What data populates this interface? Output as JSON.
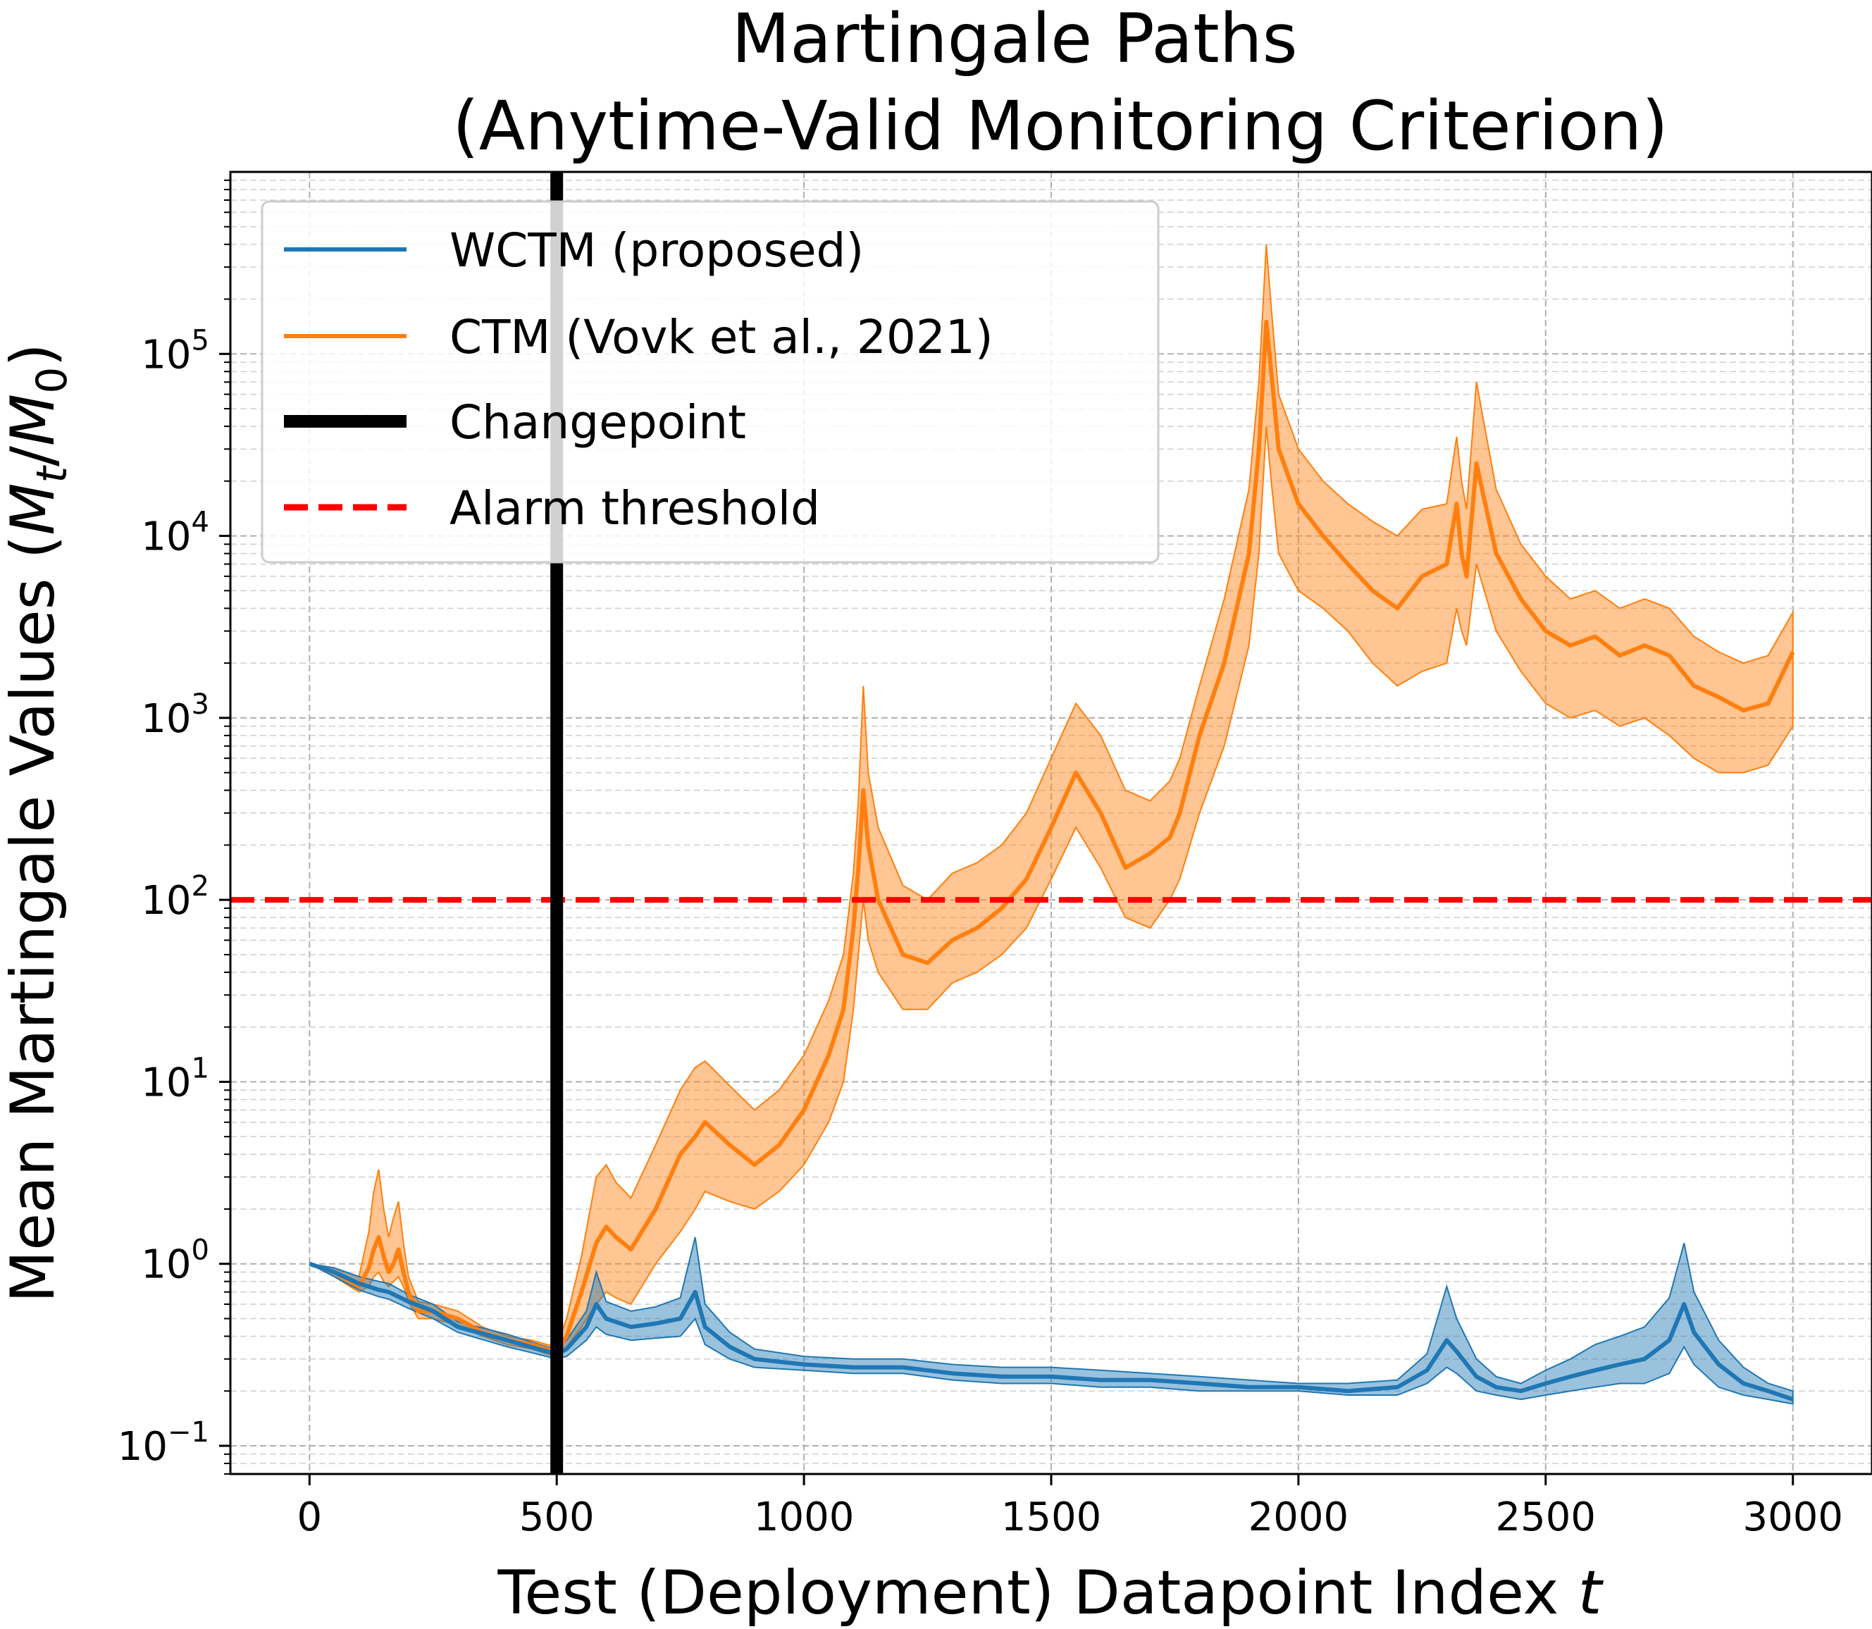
{
  "chart_data": {
    "type": "line",
    "title": "Martingale Paths",
    "subtitle": "(Anytime-Valid Monitoring Criterion)",
    "xlabel": "Test (Deployment) Datapoint Index t",
    "ylabel": "Mean Martingale Values (M_t/M_0)",
    "y_scale": "log",
    "xlim": [
      -160,
      3160
    ],
    "ylim": [
      0.07,
      1000000
    ],
    "x_ticks": [
      0,
      500,
      1000,
      1500,
      2000,
      2500,
      3000
    ],
    "x_tick_labels": [
      "0",
      "500",
      "1000",
      "1500",
      "2000",
      "2500",
      "3000"
    ],
    "y_ticks": [
      0.1,
      1,
      10,
      100,
      1000,
      10000,
      100000
    ],
    "y_tick_labels": [
      {
        "base": "10",
        "exp": "−1"
      },
      {
        "base": "10",
        "exp": "0"
      },
      {
        "base": "10",
        "exp": "1"
      },
      {
        "base": "10",
        "exp": "2"
      },
      {
        "base": "10",
        "exp": "3"
      },
      {
        "base": "10",
        "exp": "4"
      },
      {
        "base": "10",
        "exp": "5"
      }
    ],
    "grid": true,
    "legend_position": "upper-left",
    "series": [
      {
        "name": "WCTM (proposed)",
        "color": "#1f77b4",
        "x": [
          0,
          50,
          100,
          140,
          160,
          200,
          250,
          300,
          400,
          480,
          500,
          520,
          560,
          580,
          600,
          650,
          700,
          750,
          780,
          800,
          850,
          900,
          1000,
          1100,
          1200,
          1300,
          1400,
          1500,
          1600,
          1700,
          1800,
          1900,
          2000,
          2100,
          2200,
          2260,
          2300,
          2320,
          2360,
          2400,
          2450,
          2500,
          2550,
          2600,
          2650,
          2700,
          2750,
          2780,
          2800,
          2850,
          2900,
          2950,
          3000
        ],
        "values": [
          1.0,
          0.9,
          0.78,
          0.72,
          0.7,
          0.62,
          0.55,
          0.45,
          0.38,
          0.33,
          0.32,
          0.34,
          0.45,
          0.6,
          0.5,
          0.45,
          0.47,
          0.5,
          0.7,
          0.45,
          0.35,
          0.3,
          0.28,
          0.27,
          0.27,
          0.25,
          0.24,
          0.24,
          0.23,
          0.23,
          0.22,
          0.21,
          0.21,
          0.2,
          0.21,
          0.26,
          0.38,
          0.33,
          0.24,
          0.21,
          0.2,
          0.22,
          0.24,
          0.26,
          0.28,
          0.3,
          0.38,
          0.6,
          0.42,
          0.28,
          0.22,
          0.2,
          0.18
        ],
        "band_lower": [
          1.0,
          0.85,
          0.72,
          0.66,
          0.64,
          0.57,
          0.5,
          0.42,
          0.35,
          0.31,
          0.3,
          0.31,
          0.38,
          0.45,
          0.41,
          0.38,
          0.39,
          0.4,
          0.5,
          0.36,
          0.3,
          0.27,
          0.26,
          0.25,
          0.25,
          0.23,
          0.22,
          0.22,
          0.21,
          0.21,
          0.2,
          0.2,
          0.2,
          0.19,
          0.19,
          0.22,
          0.27,
          0.25,
          0.2,
          0.19,
          0.18,
          0.19,
          0.2,
          0.21,
          0.22,
          0.22,
          0.25,
          0.35,
          0.28,
          0.21,
          0.19,
          0.18,
          0.17
        ],
        "band_upper": [
          1.0,
          0.95,
          0.85,
          0.8,
          0.78,
          0.68,
          0.6,
          0.48,
          0.41,
          0.35,
          0.34,
          0.38,
          0.55,
          0.9,
          0.62,
          0.55,
          0.58,
          0.65,
          1.4,
          0.6,
          0.42,
          0.34,
          0.31,
          0.3,
          0.3,
          0.28,
          0.27,
          0.27,
          0.26,
          0.25,
          0.24,
          0.23,
          0.22,
          0.22,
          0.23,
          0.32,
          0.75,
          0.5,
          0.3,
          0.24,
          0.22,
          0.26,
          0.3,
          0.36,
          0.4,
          0.45,
          0.65,
          1.3,
          0.7,
          0.38,
          0.27,
          0.22,
          0.2
        ]
      },
      {
        "name": "CTM (Vovk et al., 2021)",
        "color": "#ff7f0e",
        "x": [
          0,
          50,
          100,
          120,
          130,
          140,
          150,
          160,
          170,
          180,
          190,
          200,
          220,
          250,
          300,
          350,
          400,
          450,
          480,
          500,
          520,
          550,
          580,
          600,
          620,
          650,
          700,
          750,
          780,
          800,
          850,
          900,
          950,
          1000,
          1050,
          1080,
          1100,
          1110,
          1120,
          1130,
          1150,
          1200,
          1250,
          1300,
          1350,
          1400,
          1450,
          1500,
          1550,
          1600,
          1650,
          1700,
          1740,
          1760,
          1800,
          1850,
          1900,
          1920,
          1935,
          1945,
          1960,
          2000,
          2050,
          2100,
          2150,
          2200,
          2250,
          2300,
          2320,
          2330,
          2340,
          2360,
          2400,
          2450,
          2500,
          2550,
          2600,
          2650,
          2700,
          2750,
          2800,
          2850,
          2900,
          2950,
          3000
        ],
        "values": [
          1.0,
          0.9,
          0.75,
          0.95,
          1.2,
          1.4,
          1.1,
          0.9,
          1.0,
          1.2,
          0.9,
          0.7,
          0.55,
          0.55,
          0.5,
          0.42,
          0.38,
          0.36,
          0.34,
          0.33,
          0.4,
          0.7,
          1.3,
          1.6,
          1.4,
          1.2,
          2.0,
          4.0,
          5.0,
          6.0,
          4.5,
          3.5,
          4.5,
          7.0,
          14,
          25,
          70,
          150,
          400,
          200,
          100,
          50,
          45,
          60,
          70,
          90,
          130,
          250,
          500,
          300,
          150,
          180,
          220,
          300,
          800,
          2000,
          8000,
          30000,
          150000,
          80000,
          30000,
          15000,
          10000,
          7000,
          5000,
          4000,
          6000,
          7000,
          15000,
          8000,
          6000,
          25000,
          8000,
          4500,
          3000,
          2500,
          2800,
          2200,
          2500,
          2200,
          1500,
          1300,
          1100,
          1200,
          2300
        ],
        "band_lower": [
          1.0,
          0.85,
          0.7,
          0.75,
          0.85,
          0.9,
          0.8,
          0.75,
          0.8,
          0.85,
          0.75,
          0.62,
          0.5,
          0.5,
          0.46,
          0.4,
          0.36,
          0.34,
          0.32,
          0.31,
          0.35,
          0.45,
          0.6,
          0.7,
          0.65,
          0.6,
          1.0,
          1.5,
          2.0,
          2.5,
          2.2,
          2.0,
          2.5,
          3.5,
          6.0,
          10,
          25,
          50,
          100,
          60,
          40,
          25,
          25,
          35,
          40,
          50,
          70,
          130,
          250,
          150,
          80,
          70,
          100,
          130,
          300,
          700,
          2500,
          8000,
          40000,
          20000,
          8000,
          5000,
          4000,
          3000,
          2000,
          1500,
          1800,
          2000,
          4000,
          3000,
          2500,
          7000,
          3000,
          1800,
          1200,
          1000,
          1100,
          900,
          1000,
          800,
          600,
          500,
          500,
          550,
          900
        ],
        "band_upper": [
          1.0,
          0.95,
          0.85,
          1.5,
          2.5,
          3.3,
          2.0,
          1.4,
          1.8,
          2.2,
          1.3,
          0.85,
          0.62,
          0.6,
          0.55,
          0.45,
          0.4,
          0.38,
          0.36,
          0.35,
          0.5,
          1.1,
          3.0,
          3.5,
          2.8,
          2.3,
          4.5,
          9.0,
          12,
          13,
          9.5,
          7.0,
          9.0,
          14,
          28,
          50,
          140,
          350,
          1500,
          500,
          250,
          120,
          100,
          140,
          160,
          200,
          300,
          600,
          1200,
          800,
          400,
          350,
          450,
          600,
          1500,
          4500,
          18000,
          70000,
          400000,
          180000,
          60000,
          30000,
          20000,
          15000,
          12000,
          10000,
          14000,
          15000,
          35000,
          20000,
          14000,
          70000,
          18000,
          9000,
          6000,
          4500,
          5000,
          4000,
          4500,
          4000,
          2800,
          2300,
          2000,
          2200,
          3800
        ]
      }
    ],
    "changepoint": {
      "name": "Changepoint",
      "x": 500,
      "color": "#000000"
    },
    "threshold": {
      "name": "Alarm threshold",
      "y": 100,
      "color": "#ff0000"
    }
  }
}
